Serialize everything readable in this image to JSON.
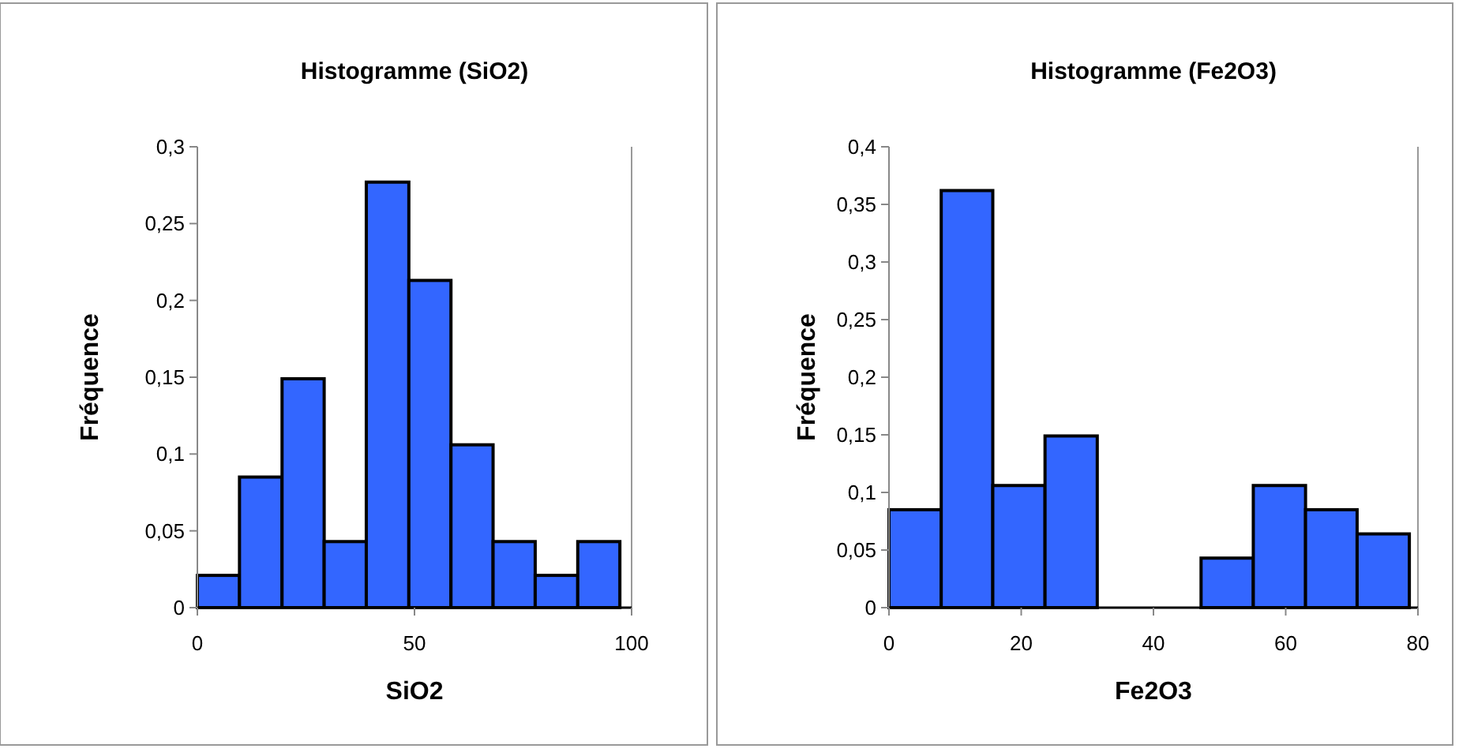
{
  "chart_data": [
    {
      "type": "histogram",
      "title": "Histogramme (SiO2)",
      "xlabel": "SiO2",
      "ylabel": "Fréquence",
      "bins": [
        0,
        9.7,
        19.5,
        29.2,
        38.9,
        48.7,
        58.4,
        68.1,
        77.8,
        87.6,
        97.3
      ],
      "values": [
        0.021,
        0.085,
        0.149,
        0.043,
        0.277,
        0.213,
        0.106,
        0.043,
        0.021,
        0.043
      ],
      "color": "#3366ff",
      "xlim": [
        0,
        100
      ],
      "xticks": [
        0,
        50,
        100
      ],
      "ylim": [
        0,
        0.3
      ],
      "yticks": [
        {
          "value": 0,
          "label": "0"
        },
        {
          "value": 0.05,
          "label": "0,05"
        },
        {
          "value": 0.1,
          "label": "0,1"
        },
        {
          "value": 0.15,
          "label": "0,15"
        },
        {
          "value": 0.2,
          "label": "0,2"
        },
        {
          "value": 0.25,
          "label": "0,25"
        },
        {
          "value": 0.3,
          "label": "0,3"
        }
      ],
      "grid": false
    },
    {
      "type": "histogram",
      "title": "Histogramme (Fe2O3)",
      "xlabel": "Fe2O3",
      "ylabel": "Fréquence",
      "bins": [
        0,
        7.9,
        15.7,
        23.6,
        31.5,
        47.2,
        55.1,
        63.0,
        70.8,
        78.7
      ],
      "values": [
        0.085,
        0.362,
        0.106,
        0.149,
        0,
        0.043,
        0.106,
        0.085,
        0.064
      ],
      "color": "#3366ff",
      "xlim": [
        0,
        80
      ],
      "xticks": [
        0,
        20,
        40,
        60,
        80
      ],
      "ylim": [
        0,
        0.4
      ],
      "yticks": [
        {
          "value": 0,
          "label": "0"
        },
        {
          "value": 0.05,
          "label": "0,05"
        },
        {
          "value": 0.1,
          "label": "0,1"
        },
        {
          "value": 0.15,
          "label": "0,15"
        },
        {
          "value": 0.2,
          "label": "0,2"
        },
        {
          "value": 0.25,
          "label": "0,25"
        },
        {
          "value": 0.3,
          "label": "0,3"
        },
        {
          "value": 0.35,
          "label": "0,35"
        },
        {
          "value": 0.4,
          "label": "0,4"
        }
      ],
      "grid": false
    }
  ]
}
